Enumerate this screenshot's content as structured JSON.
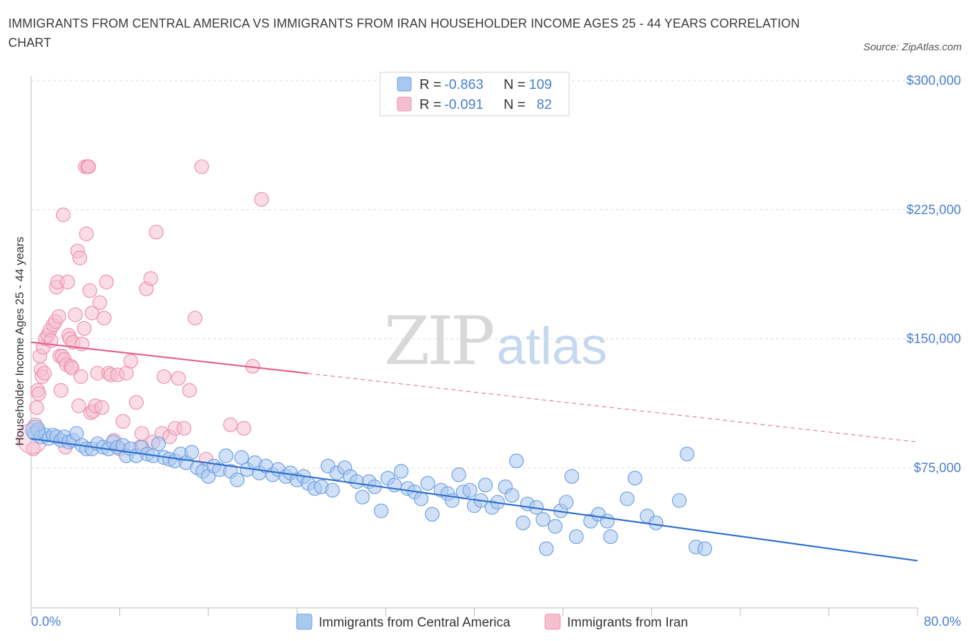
{
  "title": "IMMIGRANTS FROM CENTRAL AMERICA VS IMMIGRANTS FROM IRAN HOUSEHOLDER INCOME AGES 25 - 44 YEARS CORRELATION CHART",
  "source": "Source: ZipAtlas.com",
  "watermark": {
    "zip": "ZIP",
    "atlas": "atlas"
  },
  "legend_box": {
    "rows": [
      {
        "r_label": "R =",
        "r_value": "-0.863",
        "n_label": "N =",
        "n_value": "109"
      },
      {
        "r_label": "R =",
        "r_value": "-0.091",
        "n_label": "N =",
        "n_value": "82"
      }
    ]
  },
  "colors": {
    "blue_fill": "#a9c8f0",
    "blue_stroke": "#6d9fe0",
    "blue_line": "#2e6fce",
    "pink_fill": "#f6bfd0",
    "pink_stroke": "#ee8fae",
    "pink_line": "#e4608c",
    "axis_label": "#4a7fd0",
    "grid": "#dddddd"
  },
  "chart_data": {
    "type": "scatter",
    "title": "IMMIGRANTS FROM CENTRAL AMERICA VS IMMIGRANTS FROM IRAN HOUSEHOLDER INCOME AGES 25 - 44 YEARS CORRELATION CHART",
    "xlabel": "",
    "ylabel": "Householder Income Ages 25 - 44 years",
    "xlim": [
      0,
      80
    ],
    "ylim": [
      0,
      300000
    ],
    "x_tick_labels": [
      "0.0%",
      "80.0%"
    ],
    "y_ticks": [
      {
        "value": 75000,
        "label": "$75,000"
      },
      {
        "value": 150000,
        "label": "$150,000"
      },
      {
        "value": 225000,
        "label": "$225,000"
      },
      {
        "value": 300000,
        "label": "$300,000"
      }
    ],
    "grid": "horizontal dashed",
    "legend_position": "bottom",
    "series": [
      {
        "name": "Immigrants from Central America",
        "color": "#a9c8f0",
        "trend": {
          "x": [
            0,
            80
          ],
          "y": [
            92000,
            21000
          ],
          "dashed_from": null
        },
        "points": [
          [
            0.3,
            95000
          ],
          [
            0.6,
            97000
          ],
          [
            0.9,
            93000
          ],
          [
            1.3,
            94000
          ],
          [
            1.6,
            92000
          ],
          [
            2.0,
            94000
          ],
          [
            2.3,
            93000
          ],
          [
            2.7,
            91000
          ],
          [
            3.0,
            93000
          ],
          [
            3.4,
            90000
          ],
          [
            3.8,
            91000
          ],
          [
            4.1,
            95000
          ],
          [
            4.6,
            88000
          ],
          [
            5.0,
            86000
          ],
          [
            5.5,
            86000
          ],
          [
            6.0,
            89000
          ],
          [
            6.5,
            87000
          ],
          [
            7.0,
            86000
          ],
          [
            7.4,
            90000
          ],
          [
            7.8,
            87000
          ],
          [
            8.3,
            88000
          ],
          [
            8.6,
            82000
          ],
          [
            9.0,
            86000
          ],
          [
            9.5,
            82000
          ],
          [
            10.0,
            87000
          ],
          [
            10.5,
            83000
          ],
          [
            11.0,
            82000
          ],
          [
            11.5,
            89000
          ],
          [
            12.0,
            81000
          ],
          [
            12.5,
            80000
          ],
          [
            13.0,
            79000
          ],
          [
            13.5,
            83000
          ],
          [
            14.0,
            78000
          ],
          [
            14.5,
            84000
          ],
          [
            15.0,
            75000
          ],
          [
            15.5,
            73000
          ],
          [
            16.0,
            70000
          ],
          [
            16.5,
            76000
          ],
          [
            17.0,
            74000
          ],
          [
            17.6,
            82000
          ],
          [
            18.0,
            73000
          ],
          [
            18.6,
            68000
          ],
          [
            19.0,
            81000
          ],
          [
            19.5,
            74000
          ],
          [
            20.2,
            78000
          ],
          [
            20.6,
            72000
          ],
          [
            21.2,
            76000
          ],
          [
            21.8,
            71000
          ],
          [
            22.3,
            74000
          ],
          [
            23.0,
            70000
          ],
          [
            23.4,
            72000
          ],
          [
            24.0,
            68000
          ],
          [
            24.6,
            70000
          ],
          [
            25.0,
            66000
          ],
          [
            25.6,
            63000
          ],
          [
            26.2,
            64000
          ],
          [
            26.8,
            76000
          ],
          [
            27.2,
            62000
          ],
          [
            27.6,
            72000
          ],
          [
            28.3,
            75000
          ],
          [
            28.8,
            70000
          ],
          [
            29.4,
            67000
          ],
          [
            29.9,
            58000
          ],
          [
            30.5,
            67000
          ],
          [
            31.0,
            64000
          ],
          [
            31.6,
            50000
          ],
          [
            32.2,
            69000
          ],
          [
            32.8,
            65000
          ],
          [
            33.4,
            73000
          ],
          [
            34.0,
            63000
          ],
          [
            34.6,
            61000
          ],
          [
            35.2,
            57000
          ],
          [
            35.8,
            66000
          ],
          [
            36.2,
            48000
          ],
          [
            37.0,
            62000
          ],
          [
            37.6,
            60000
          ],
          [
            38.0,
            56000
          ],
          [
            38.6,
            71000
          ],
          [
            39.0,
            61000
          ],
          [
            39.6,
            62000
          ],
          [
            40.0,
            53000
          ],
          [
            40.6,
            56000
          ],
          [
            41.0,
            65000
          ],
          [
            41.6,
            52000
          ],
          [
            42.1,
            55000
          ],
          [
            42.8,
            64000
          ],
          [
            43.4,
            59000
          ],
          [
            43.8,
            79000
          ],
          [
            44.4,
            43000
          ],
          [
            44.8,
            54000
          ],
          [
            45.6,
            52000
          ],
          [
            46.2,
            45000
          ],
          [
            46.5,
            28000
          ],
          [
            47.3,
            41000
          ],
          [
            47.8,
            50000
          ],
          [
            48.3,
            55000
          ],
          [
            48.8,
            70000
          ],
          [
            49.2,
            35000
          ],
          [
            50.5,
            44000
          ],
          [
            51.2,
            48000
          ],
          [
            52.0,
            44000
          ],
          [
            52.3,
            35000
          ],
          [
            53.8,
            57000
          ],
          [
            54.5,
            69000
          ],
          [
            55.6,
            47000
          ],
          [
            56.4,
            43000
          ],
          [
            58.5,
            56000
          ],
          [
            59.2,
            83000
          ],
          [
            60.0,
            29000
          ],
          [
            60.8,
            28000
          ]
        ]
      },
      {
        "name": "Immigrants from Iran",
        "color": "#f6bfd0",
        "trend": {
          "x": [
            0,
            80
          ],
          "y": [
            148000,
            90000
          ],
          "solid_until_x": 25
        },
        "points": [
          [
            0.2,
            86000
          ],
          [
            0.4,
            100000
          ],
          [
            0.5,
            110000
          ],
          [
            0.6,
            120000
          ],
          [
            0.7,
            118000
          ],
          [
            0.8,
            140000
          ],
          [
            0.9,
            132000
          ],
          [
            1.0,
            128000
          ],
          [
            1.1,
            145000
          ],
          [
            1.2,
            130000
          ],
          [
            1.3,
            150000
          ],
          [
            1.5,
            152000
          ],
          [
            1.7,
            155000
          ],
          [
            1.8,
            149000
          ],
          [
            2.0,
            158000
          ],
          [
            2.2,
            160000
          ],
          [
            2.3,
            180000
          ],
          [
            2.4,
            183000
          ],
          [
            2.5,
            163000
          ],
          [
            2.6,
            140000
          ],
          [
            2.7,
            120000
          ],
          [
            2.8,
            140000
          ],
          [
            2.9,
            222000
          ],
          [
            3.0,
            138000
          ],
          [
            3.1,
            87000
          ],
          [
            3.2,
            135000
          ],
          [
            3.3,
            183000
          ],
          [
            3.4,
            152000
          ],
          [
            3.5,
            150000
          ],
          [
            3.6,
            134000
          ],
          [
            3.7,
            133000
          ],
          [
            3.8,
            148000
          ],
          [
            4.0,
            164000
          ],
          [
            4.2,
            201000
          ],
          [
            4.3,
            111000
          ],
          [
            4.4,
            197000
          ],
          [
            4.5,
            128000
          ],
          [
            4.6,
            147000
          ],
          [
            4.8,
            156000
          ],
          [
            4.9,
            250000
          ],
          [
            5.0,
            211000
          ],
          [
            5.1,
            250000
          ],
          [
            5.2,
            250000
          ],
          [
            5.3,
            178000
          ],
          [
            5.4,
            107000
          ],
          [
            5.5,
            165000
          ],
          [
            5.6,
            108000
          ],
          [
            5.8,
            111000
          ],
          [
            6.0,
            130000
          ],
          [
            6.2,
            171000
          ],
          [
            6.4,
            110000
          ],
          [
            6.6,
            162000
          ],
          [
            6.8,
            183000
          ],
          [
            7.0,
            130000
          ],
          [
            7.2,
            129000
          ],
          [
            7.5,
            91000
          ],
          [
            7.8,
            129000
          ],
          [
            8.0,
            86000
          ],
          [
            8.3,
            102000
          ],
          [
            8.6,
            130000
          ],
          [
            9.0,
            137000
          ],
          [
            9.5,
            113000
          ],
          [
            9.8,
            87000
          ],
          [
            10.0,
            95000
          ],
          [
            10.4,
            179000
          ],
          [
            10.8,
            185000
          ],
          [
            11.0,
            90000
          ],
          [
            11.3,
            212000
          ],
          [
            11.8,
            95000
          ],
          [
            12.0,
            128000
          ],
          [
            12.5,
            93000
          ],
          [
            13.0,
            98000
          ],
          [
            13.3,
            127000
          ],
          [
            13.8,
            98000
          ],
          [
            14.3,
            120000
          ],
          [
            14.8,
            162000
          ],
          [
            15.4,
            250000
          ],
          [
            15.8,
            80000
          ],
          [
            18.0,
            100000
          ],
          [
            19.2,
            98000
          ],
          [
            20.0,
            134000
          ],
          [
            20.8,
            231000
          ]
        ]
      }
    ]
  },
  "bottom_legend": [
    {
      "label": "Immigrants from Central America"
    },
    {
      "label": "Immigrants from Iran"
    }
  ]
}
